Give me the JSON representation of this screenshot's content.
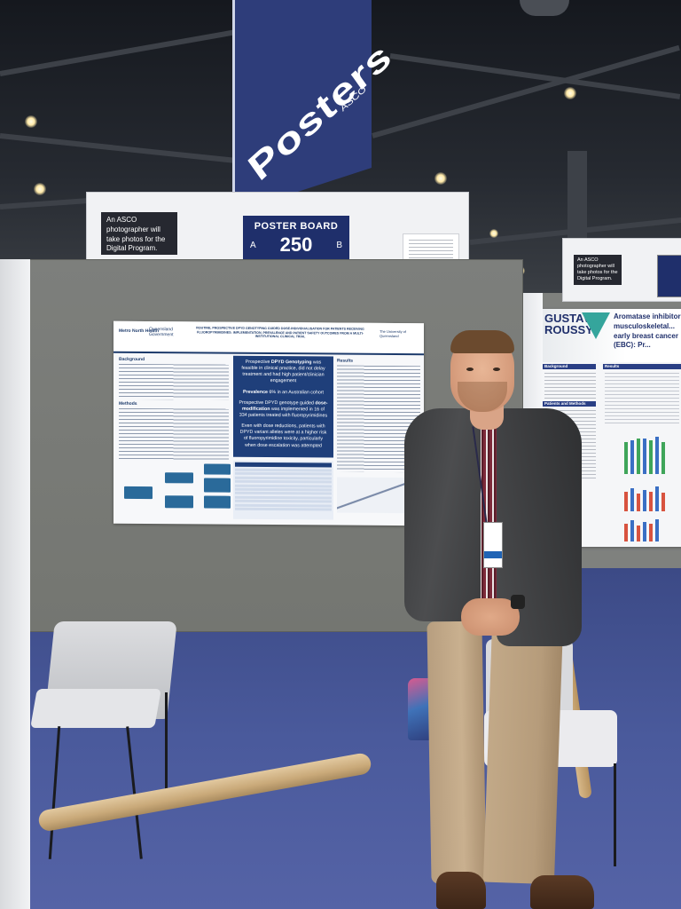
{
  "signs": {
    "posters": "Posters",
    "asco": "ASCO",
    "photographer_note": "An ASCO photographer will take photos for the Digital Program.",
    "photographer_note_right": "An ASCO photographer will take photos for the Digital Program.",
    "poster_board_label": "POSTER BOARD",
    "board_side_a": "A",
    "board_number": "250",
    "board_side_b": "B"
  },
  "poster": {
    "logo_left": "Metro North Health",
    "logo_gov": "Queensland Government",
    "title": "ROUTINE, PROSPECTIVE DPYD GENOTYPING GUIDED DOSE-INDIVIDUALISATION FOR PATIENTS RECEIVING FLUOROPYRIMIDINES: IMPLEMENTATION, PREVALENCE AND PATIENT SAFETY OUTCOMES FROM A MULTI-INSTITUTIONAL CLINICAL TRIAL",
    "logo_right": "The University of Queensland",
    "background_heading": "Background",
    "methods_heading": "Methods",
    "results_heading": "Results",
    "key_1_pre": "Prospective ",
    "key_1_bold": "DPYD Genotyping",
    "key_1_post": " was feasible in clinical practice, did not delay treatment and had high patient/clinician engagement",
    "key_2_bold": "Prevalence",
    "key_2_post": " 6% in an Australian cohort",
    "key_3_pre": "Prospective DPYD genotype guided ",
    "key_3_bold": "dose-modification",
    "key_3_post": " was implemented in 16 of 334 patients treated with fluoropyrimidines",
    "key_4": "Even with dose reductions, patients with DPYD variant alleles were at a higher risk of fluoropyrimidine toxicity, particularly when dose escalation was attempted"
  },
  "poster_right": {
    "logo_line1": "GUSTAVE",
    "logo_line2": "ROUSSY",
    "title": "Aromatase inhibitor musculoskeletal... early breast cancer (EBC): Pr...",
    "background_heading": "Background",
    "methods_heading": "Patients and Methods",
    "results_heading": "Results"
  },
  "colors": {
    "board_badge": "#1f2f6b",
    "poster_accent": "#1f3f7a",
    "carpet": "#4a5a9c",
    "board_fabric": "#7d7f7c"
  }
}
